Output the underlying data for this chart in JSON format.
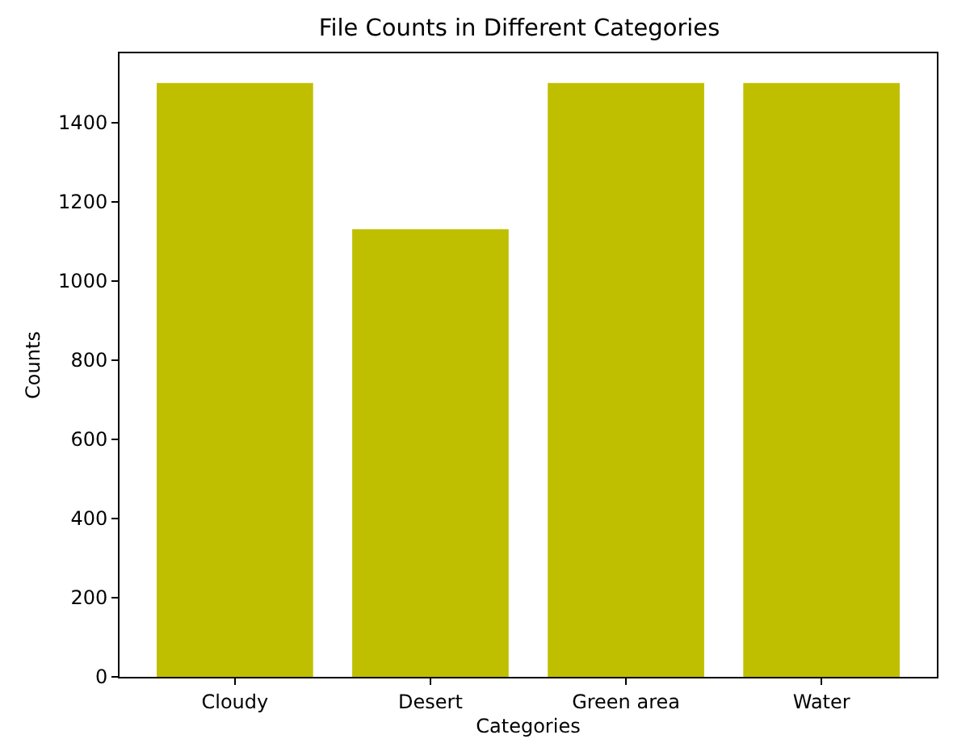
{
  "chart_data": {
    "type": "bar",
    "title": "File Counts in Different Categories",
    "xlabel": "Categories",
    "ylabel": "Counts",
    "categories": [
      "Cloudy",
      "Desert",
      "Green area",
      "Water"
    ],
    "values": [
      1500,
      1131,
      1500,
      1500
    ],
    "color": "#bfbf00",
    "ylim": [
      0,
      1575
    ],
    "yticks": [
      0,
      200,
      400,
      600,
      800,
      1000,
      1200,
      1400
    ],
    "grid": false,
    "legend": false
  }
}
